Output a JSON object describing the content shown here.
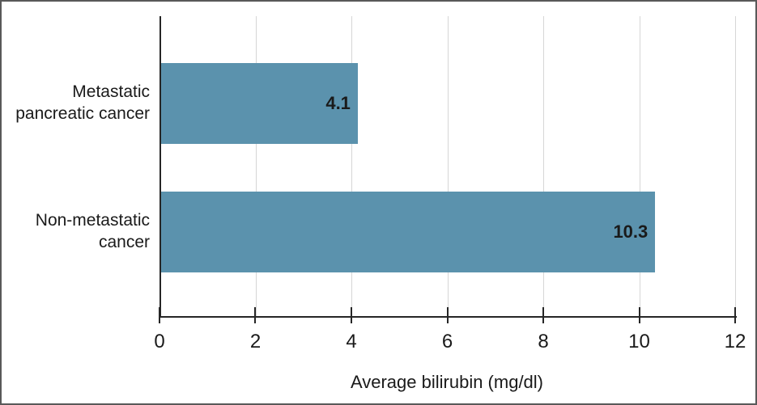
{
  "chart_data": {
    "type": "bar",
    "orientation": "horizontal",
    "categories": [
      "Metastatic\npancreatic cancer",
      "Non-metastatic\ncancer"
    ],
    "values": [
      4.1,
      10.3
    ],
    "data_labels": [
      "4.1",
      "10.3"
    ],
    "xlabel": "Average bilirubin (mg/dl)",
    "ylabel": "",
    "xlim": [
      0,
      12
    ],
    "x_ticks": [
      0,
      2,
      4,
      6,
      8,
      10,
      12
    ],
    "grid": "vertical",
    "legend": "none",
    "bar_color": "#5B92AD",
    "gridline_color": "#D6D6D6",
    "axis_color": "#262626",
    "frame_border_color": "#595959"
  }
}
